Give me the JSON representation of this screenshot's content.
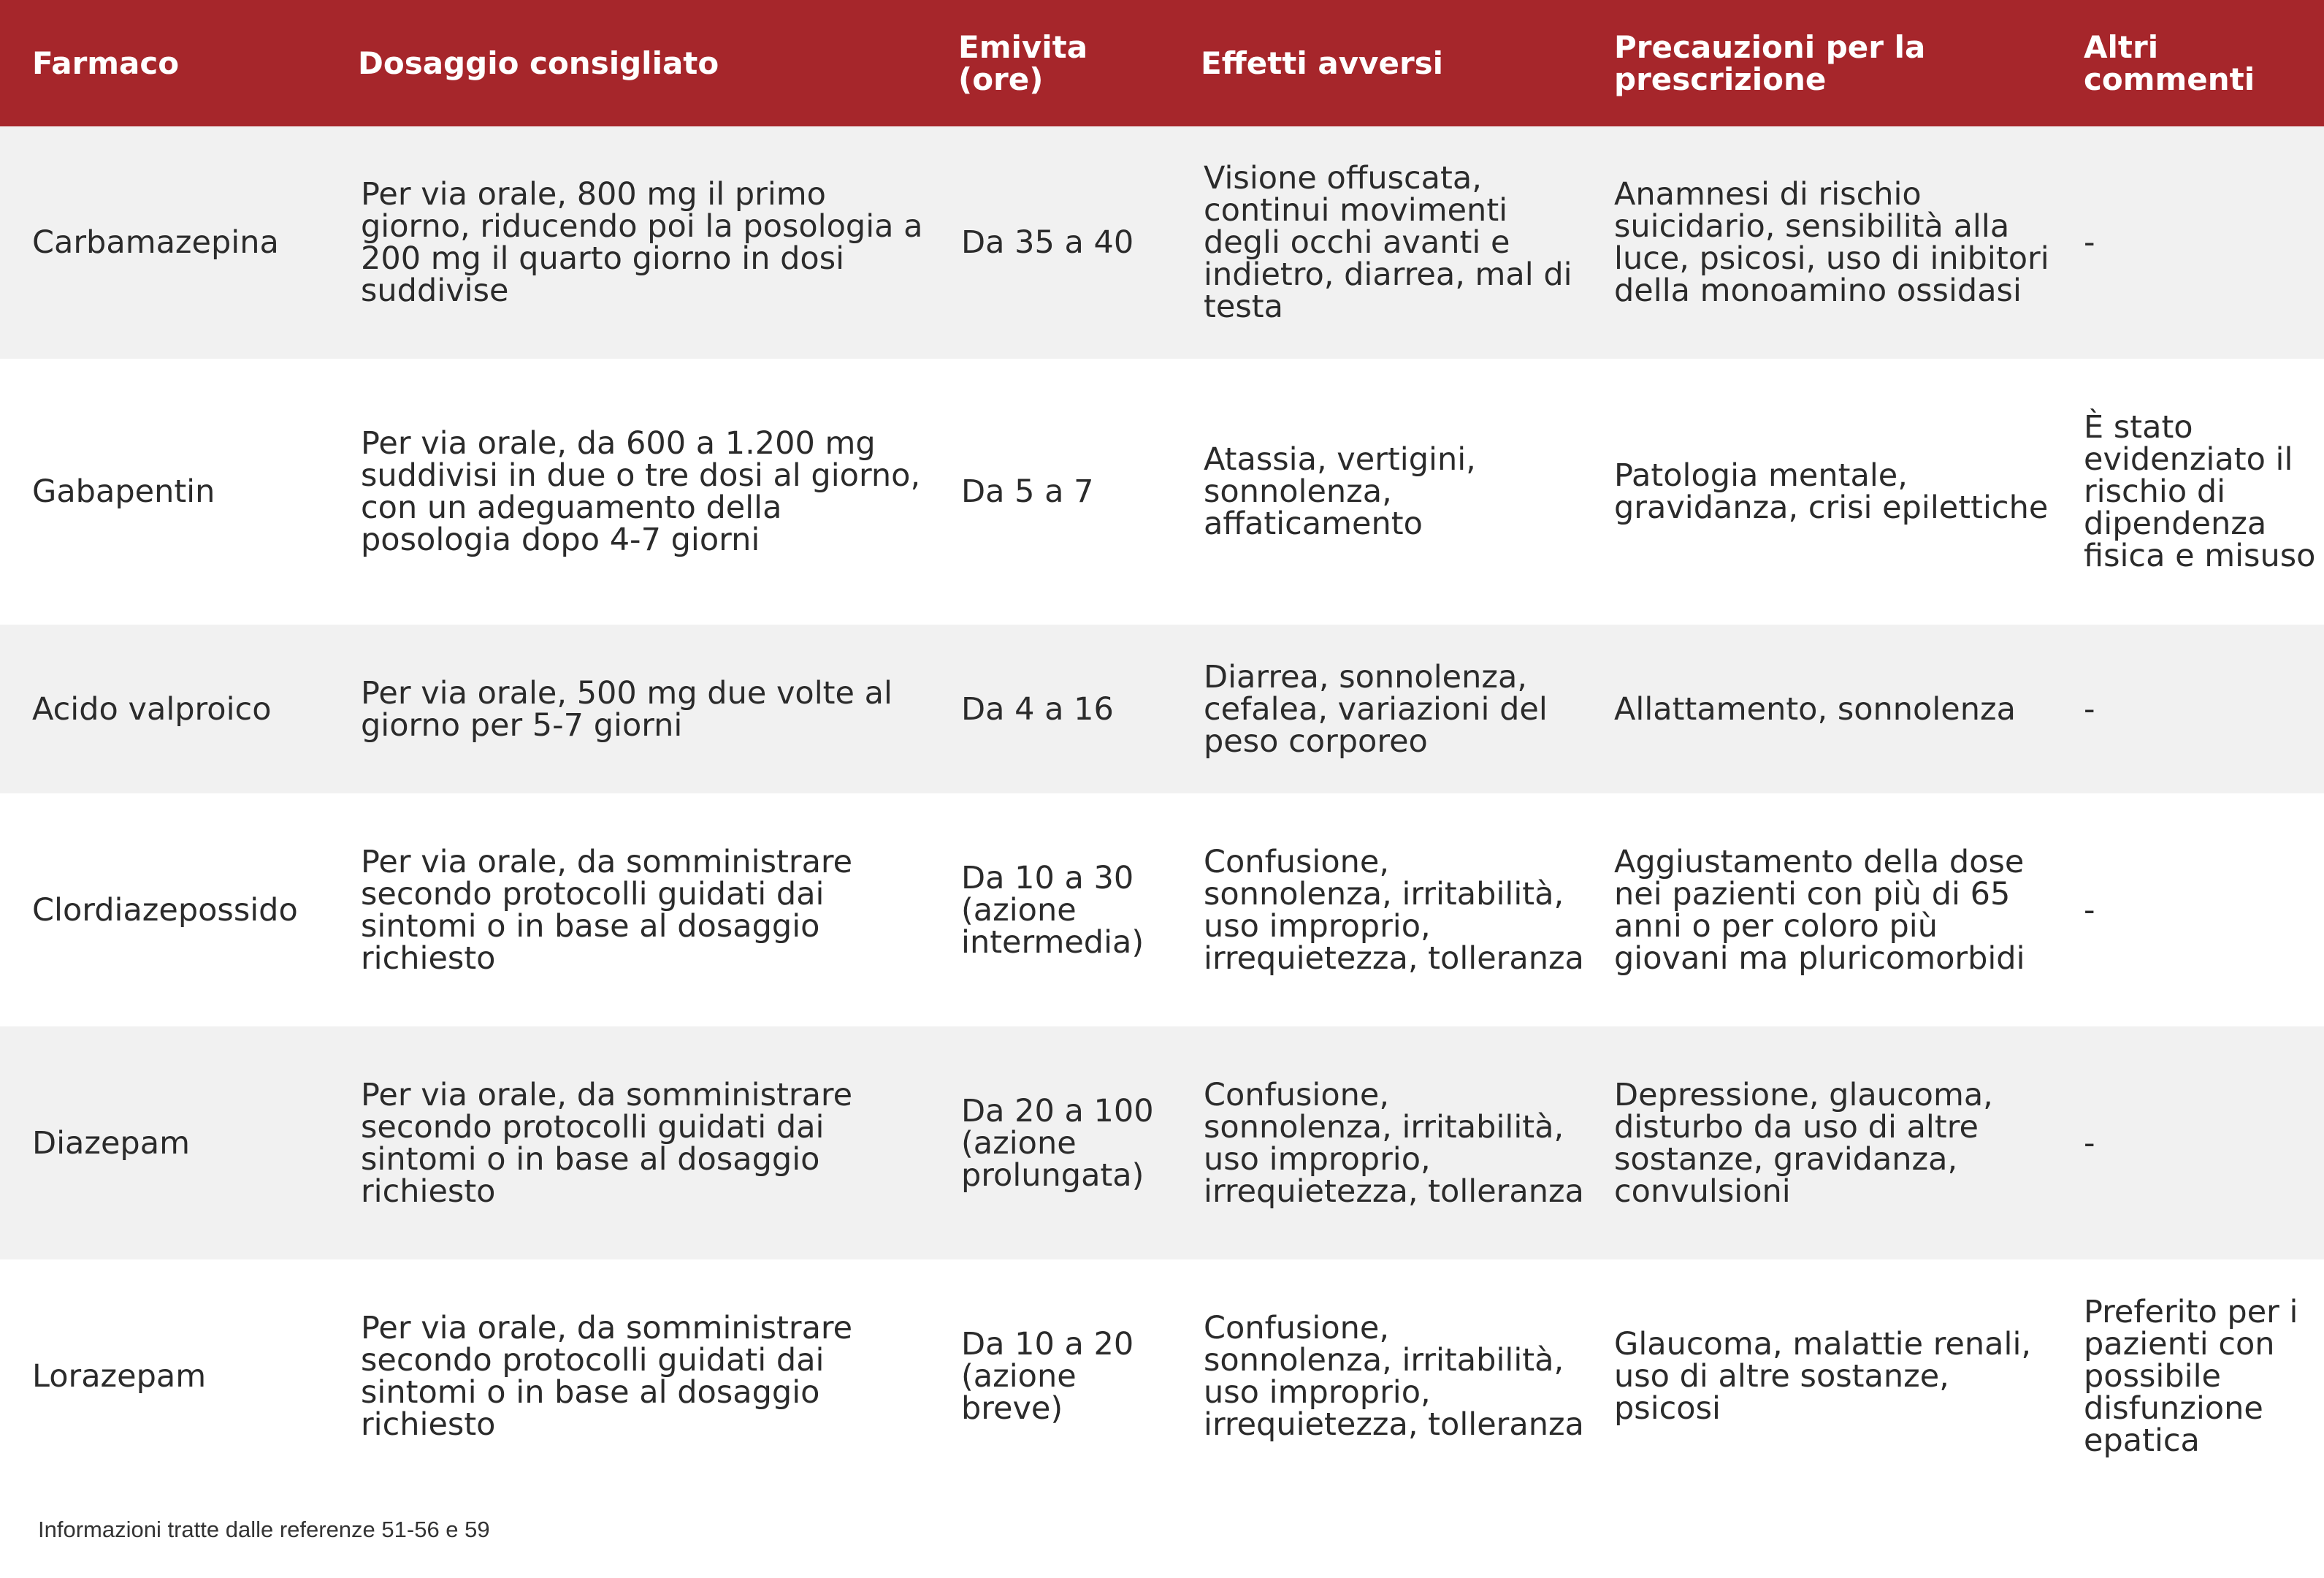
{
  "colors": {
    "header_bg": "#a6262b",
    "header_text": "#ffffff",
    "row_shade": "#f1f1f1",
    "row_plain": "#ffffff",
    "body_text": "#2b2b2b"
  },
  "header": {
    "col1": "Farmaco",
    "col2": "Dosaggio consigliato",
    "col3": "Emivita (ore)",
    "col4": "Effetti avversi",
    "col5": "Precauzioni per la prescrizione",
    "col6": "Altri commenti"
  },
  "rows": [
    {
      "farmaco": "Carbamazepina",
      "dosaggio": "Per via orale, 800 mg il primo giorno, riducendo poi la posologia a 200 mg il quarto giorno in dosi suddivise",
      "emivita": "Da 35 a 40",
      "effetti": "Visione offuscata, continui movimenti degli occhi avanti e indietro, diarrea, mal di testa",
      "precauzioni": "Anamnesi di rischio suicidario, sensibilità alla luce, psicosi, uso di inibitori della monoamino ossidasi",
      "commenti": "-"
    },
    {
      "farmaco": "Gabapentin",
      "dosaggio": "Per via orale, da 600 a 1.200 mg suddivisi in due o tre dosi al giorno, con un adeguamento della posologia dopo 4-7 giorni",
      "emivita": "Da 5 a 7",
      "effetti": "Atassia, vertigini, sonnolenza, affaticamento",
      "precauzioni": "Patologia mentale, gravidanza, crisi epilettiche",
      "commenti": "È stato evidenziato il rischio di dipendenza fisica e misuso"
    },
    {
      "farmaco": "Acido valproico",
      "dosaggio": "Per via orale, 500 mg due volte al giorno per 5-7 giorni",
      "emivita": "Da 4 a 16",
      "effetti": "Diarrea, sonnolenza, cefalea, variazioni del peso corporeo",
      "precauzioni": "Allattamento, sonnolenza",
      "commenti": "-"
    },
    {
      "farmaco": "Clordiazepossido",
      "dosaggio": "Per via orale, da somministrare secondo protocolli guidati dai sintomi o in base al dosaggio richiesto",
      "emivita": "Da 10 a 30 (azione intermedia)",
      "effetti": "Confusione, sonnolenza, irritabilità, uso improprio, irrequietezza, tolleranza",
      "precauzioni": "Aggiustamento della dose nei pazienti con più di 65 anni o per coloro più giovani ma pluricomorbidi",
      "commenti": "-"
    },
    {
      "farmaco": "Diazepam",
      "dosaggio": "Per via orale, da somministrare secondo protocolli guidati dai sintomi o in base al dosaggio richiesto",
      "emivita": "Da 20 a 100 (azione prolungata)",
      "effetti": "Confusione, sonnolenza, irritabilità, uso improprio, irrequietezza, tolleranza",
      "precauzioni": "Depressione, glaucoma, disturbo da uso di altre sostanze, gravidanza, convulsioni",
      "commenti": "-"
    },
    {
      "farmaco": "Lorazepam",
      "dosaggio": "Per via orale, da somministrare secondo protocolli guidati dai sintomi o in base al dosaggio richiesto",
      "emivita": "Da 10 a 20 (azione breve)",
      "effetti": "Confusione, sonnolenza, irritabilità, uso improprio, irrequietezza, tolleranza",
      "precauzioni": "Glaucoma, malattie renali, uso di altre sostanze, psicosi",
      "commenti": "Preferito per i pazienti con possibile disfunzione epatica"
    }
  ],
  "footnote": "Informazioni tratte dalle referenze 51-56 e 59"
}
